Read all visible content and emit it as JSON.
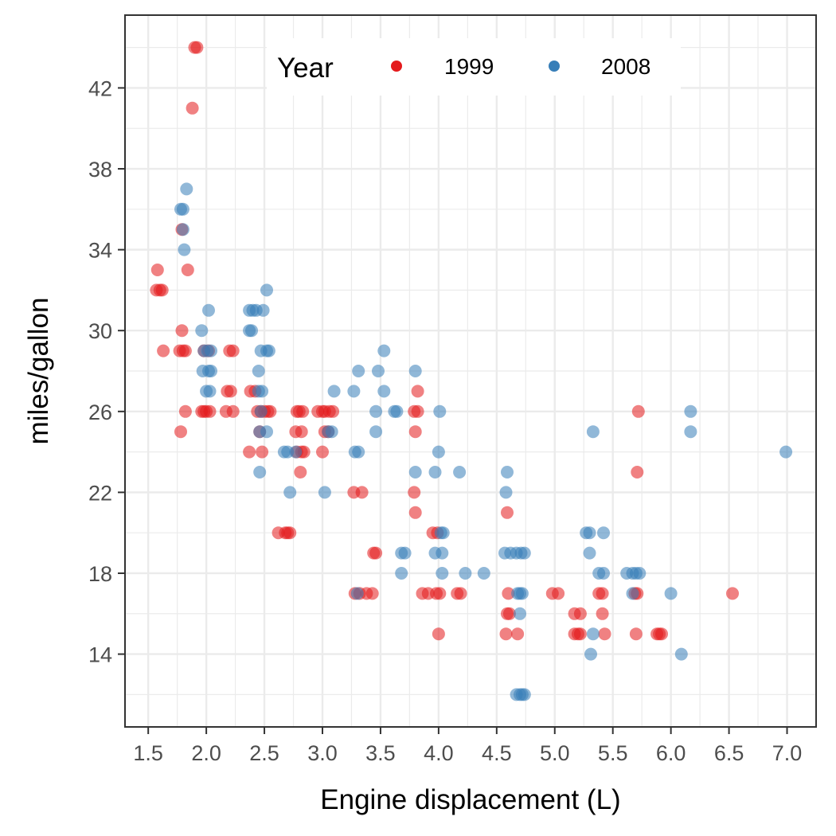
{
  "chart_data": {
    "type": "scatter",
    "title": "",
    "xlabel": "Engine displacement (L)",
    "ylabel": "miles/gallon",
    "xlim": [
      1.3,
      7.25
    ],
    "ylim": [
      10.4,
      45.6
    ],
    "x_ticks": [
      1.5,
      2.0,
      2.5,
      3.0,
      3.5,
      4.0,
      4.5,
      5.0,
      5.5,
      6.0,
      6.5,
      7.0
    ],
    "x_tick_labels": [
      "1.5",
      "2.0",
      "2.5",
      "3.0",
      "3.5",
      "4.0",
      "4.5",
      "5.0",
      "5.5",
      "6.0",
      "6.5",
      "7.0"
    ],
    "y_ticks": [
      14,
      18,
      22,
      26,
      30,
      34,
      38,
      42
    ],
    "y_tick_labels": [
      "14",
      "18",
      "22",
      "26",
      "30",
      "34",
      "38",
      "42"
    ],
    "grid": true,
    "legend": {
      "title": "Year",
      "position": "top-center-inside"
    },
    "series": [
      {
        "name": "1999",
        "color": "#E41A1C",
        "opacity": 0.55,
        "points": [
          [
            1.9,
            44
          ],
          [
            1.92,
            44
          ],
          [
            1.88,
            41
          ],
          [
            1.58,
            33
          ],
          [
            1.84,
            33
          ],
          [
            1.57,
            32
          ],
          [
            1.6,
            32
          ],
          [
            1.62,
            32
          ],
          [
            1.79,
            35
          ],
          [
            1.79,
            30
          ],
          [
            1.63,
            29
          ],
          [
            1.77,
            29
          ],
          [
            1.8,
            29
          ],
          [
            1.82,
            29
          ],
          [
            1.98,
            29
          ],
          [
            2.02,
            29
          ],
          [
            2.2,
            29
          ],
          [
            2.23,
            29
          ],
          [
            1.78,
            25
          ],
          [
            1.82,
            26
          ],
          [
            1.96,
            26
          ],
          [
            1.98,
            26
          ],
          [
            2.0,
            26
          ],
          [
            2.03,
            26
          ],
          [
            2.17,
            26
          ],
          [
            2.23,
            26
          ],
          [
            2.18,
            27
          ],
          [
            2.21,
            27
          ],
          [
            2.38,
            27
          ],
          [
            2.42,
            27
          ],
          [
            2.37,
            24
          ],
          [
            2.48,
            24
          ],
          [
            2.46,
            25
          ],
          [
            2.44,
            26
          ],
          [
            2.47,
            26
          ],
          [
            2.5,
            26
          ],
          [
            2.53,
            26
          ],
          [
            2.55,
            26
          ],
          [
            2.62,
            20
          ],
          [
            2.68,
            20
          ],
          [
            2.7,
            20
          ],
          [
            2.72,
            20
          ],
          [
            2.78,
            24
          ],
          [
            2.82,
            24
          ],
          [
            2.84,
            24
          ],
          [
            2.77,
            25
          ],
          [
            2.82,
            25
          ],
          [
            2.78,
            26
          ],
          [
            2.8,
            26
          ],
          [
            2.83,
            26
          ],
          [
            2.81,
            23
          ],
          [
            2.96,
            26
          ],
          [
            3.0,
            26
          ],
          [
            3.02,
            26
          ],
          [
            3.06,
            26
          ],
          [
            3.09,
            26
          ],
          [
            3.0,
            24
          ],
          [
            3.02,
            25
          ],
          [
            3.05,
            25
          ],
          [
            3.27,
            22
          ],
          [
            3.34,
            22
          ],
          [
            3.28,
            17
          ],
          [
            3.32,
            17
          ],
          [
            3.38,
            17
          ],
          [
            3.43,
            17
          ],
          [
            3.44,
            19
          ],
          [
            3.46,
            19
          ],
          [
            3.79,
            22
          ],
          [
            3.8,
            21
          ],
          [
            3.82,
            27
          ],
          [
            3.82,
            26
          ],
          [
            3.79,
            26
          ],
          [
            3.8,
            25
          ],
          [
            3.86,
            17
          ],
          [
            3.91,
            17
          ],
          [
            3.98,
            17
          ],
          [
            4.01,
            17
          ],
          [
            3.95,
            20
          ],
          [
            3.99,
            20
          ],
          [
            4.0,
            15
          ],
          [
            4.16,
            17
          ],
          [
            4.19,
            17
          ],
          [
            4.59,
            21
          ],
          [
            4.6,
            17
          ],
          [
            4.59,
            16
          ],
          [
            4.61,
            16
          ],
          [
            4.58,
            15
          ],
          [
            4.68,
            15
          ],
          [
            4.98,
            17
          ],
          [
            5.03,
            17
          ],
          [
            5.17,
            16
          ],
          [
            5.22,
            16
          ],
          [
            5.17,
            15
          ],
          [
            5.2,
            15
          ],
          [
            5.22,
            15
          ],
          [
            5.38,
            17
          ],
          [
            5.41,
            17
          ],
          [
            5.41,
            16
          ],
          [
            5.43,
            15
          ],
          [
            5.69,
            17
          ],
          [
            5.71,
            17
          ],
          [
            5.7,
            15
          ],
          [
            5.72,
            26
          ],
          [
            5.71,
            23
          ],
          [
            5.88,
            15
          ],
          [
            5.9,
            15
          ],
          [
            5.92,
            15
          ],
          [
            6.53,
            17
          ]
        ]
      },
      {
        "name": "2008",
        "color": "#377EB8",
        "opacity": 0.55,
        "points": [
          [
            1.83,
            37
          ],
          [
            1.78,
            36
          ],
          [
            1.8,
            36
          ],
          [
            1.8,
            35
          ],
          [
            1.81,
            34
          ],
          [
            1.96,
            30
          ],
          [
            2.02,
            31
          ],
          [
            1.98,
            29
          ],
          [
            2.01,
            29
          ],
          [
            2.04,
            29
          ],
          [
            1.97,
            28
          ],
          [
            2.02,
            28
          ],
          [
            2.04,
            28
          ],
          [
            2.0,
            27
          ],
          [
            2.03,
            27
          ],
          [
            2.37,
            31
          ],
          [
            2.4,
            31
          ],
          [
            2.43,
            31
          ],
          [
            2.49,
            31
          ],
          [
            2.37,
            30
          ],
          [
            2.39,
            30
          ],
          [
            2.47,
            29
          ],
          [
            2.52,
            29
          ],
          [
            2.54,
            29
          ],
          [
            2.52,
            32
          ],
          [
            2.45,
            28
          ],
          [
            2.45,
            27
          ],
          [
            2.48,
            27
          ],
          [
            2.47,
            26
          ],
          [
            2.46,
            25
          ],
          [
            2.52,
            25
          ],
          [
            2.46,
            23
          ],
          [
            2.67,
            24
          ],
          [
            2.7,
            24
          ],
          [
            2.72,
            22
          ],
          [
            2.77,
            24
          ],
          [
            3.02,
            22
          ],
          [
            3.05,
            25
          ],
          [
            3.08,
            25
          ],
          [
            3.1,
            27
          ],
          [
            3.27,
            27
          ],
          [
            3.31,
            28
          ],
          [
            3.48,
            28
          ],
          [
            3.53,
            27
          ],
          [
            3.53,
            29
          ],
          [
            3.28,
            24
          ],
          [
            3.31,
            24
          ],
          [
            3.46,
            26
          ],
          [
            3.46,
            25
          ],
          [
            3.62,
            26
          ],
          [
            3.64,
            26
          ],
          [
            3.68,
            19
          ],
          [
            3.71,
            19
          ],
          [
            3.68,
            18
          ],
          [
            3.3,
            17
          ],
          [
            3.8,
            28
          ],
          [
            3.8,
            23
          ],
          [
            3.97,
            23
          ],
          [
            4.01,
            26
          ],
          [
            4.0,
            24
          ],
          [
            3.97,
            19
          ],
          [
            4.02,
            20
          ],
          [
            4.04,
            20
          ],
          [
            4.03,
            19
          ],
          [
            4.03,
            18
          ],
          [
            4.18,
            23
          ],
          [
            4.23,
            18
          ],
          [
            4.39,
            18
          ],
          [
            4.59,
            23
          ],
          [
            4.58,
            22
          ],
          [
            4.57,
            19
          ],
          [
            4.62,
            19
          ],
          [
            4.67,
            19
          ],
          [
            4.71,
            19
          ],
          [
            4.74,
            19
          ],
          [
            4.68,
            17
          ],
          [
            4.7,
            17
          ],
          [
            4.72,
            17
          ],
          [
            4.7,
            16
          ],
          [
            4.67,
            12
          ],
          [
            4.7,
            12
          ],
          [
            4.72,
            12
          ],
          [
            4.74,
            12
          ],
          [
            5.27,
            20
          ],
          [
            5.3,
            20
          ],
          [
            5.42,
            20
          ],
          [
            5.3,
            19
          ],
          [
            5.38,
            18
          ],
          [
            5.42,
            18
          ],
          [
            5.62,
            18
          ],
          [
            5.67,
            18
          ],
          [
            5.7,
            18
          ],
          [
            5.73,
            18
          ],
          [
            5.33,
            15
          ],
          [
            5.31,
            14
          ],
          [
            5.67,
            17
          ],
          [
            6.0,
            17
          ],
          [
            6.09,
            14
          ],
          [
            5.33,
            25
          ],
          [
            6.17,
            26
          ],
          [
            6.17,
            25
          ],
          [
            6.99,
            24
          ]
        ]
      }
    ]
  }
}
